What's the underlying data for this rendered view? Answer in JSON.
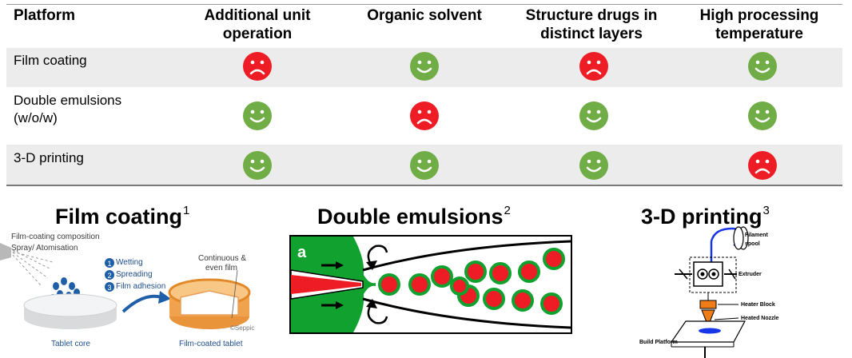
{
  "table": {
    "headers": [
      "Platform",
      "Additional unit operation",
      "Organic solvent",
      "Structure drugs in distinct layers",
      "High processing temperature"
    ],
    "rows": [
      {
        "label": "Film coating",
        "ratings": [
          "bad",
          "good",
          "bad",
          "good"
        ]
      },
      {
        "label": "Double emulsions (w/o/w)",
        "ratings": [
          "good",
          "bad",
          "good",
          "good"
        ]
      },
      {
        "label": "3-D printing",
        "ratings": [
          "good",
          "good",
          "good",
          "bad"
        ]
      }
    ],
    "colors": {
      "good": "#70ad47",
      "bad": "#ee1c24",
      "row_shade": "#ececec"
    }
  },
  "panels": {
    "film_coating": {
      "title": "Film coating",
      "ref": "1",
      "labels": {
        "composition": "Film-coating composition",
        "spray": "Spray/ Atomisation",
        "step1": "Wetting",
        "step2": "Spreading",
        "step3": "Film adhesion",
        "continuous": "Continuous &",
        "even": "even film",
        "copyright": "©Seppic",
        "tablet_core": "Tablet core",
        "coated": "Film-coated tablet"
      }
    },
    "double_emulsions": {
      "title": "Double emulsions",
      "ref": "2",
      "panel_letter": "a"
    },
    "printing": {
      "title": "3-D printing",
      "ref": "3",
      "labels": {
        "filament": "Filament",
        "spool": "spool",
        "extruder": "Extruder",
        "heater": "Heater Block",
        "nozzle": "Heated Nozzle",
        "platform": "Build Platform"
      }
    }
  }
}
